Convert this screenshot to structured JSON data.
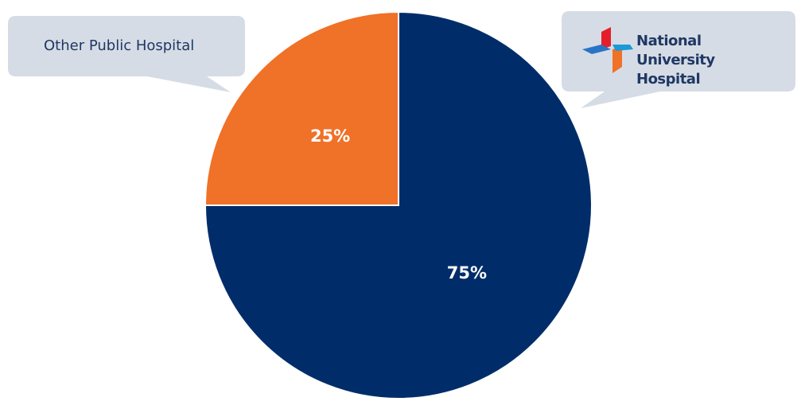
{
  "chart_data": {
    "type": "pie",
    "categories": [
      "National University Hospital",
      "Other Public Hospital"
    ],
    "values": [
      75,
      25
    ],
    "value_labels": [
      "75%",
      "25%"
    ],
    "colors": [
      "#002d69",
      "#f07128"
    ]
  }
}
